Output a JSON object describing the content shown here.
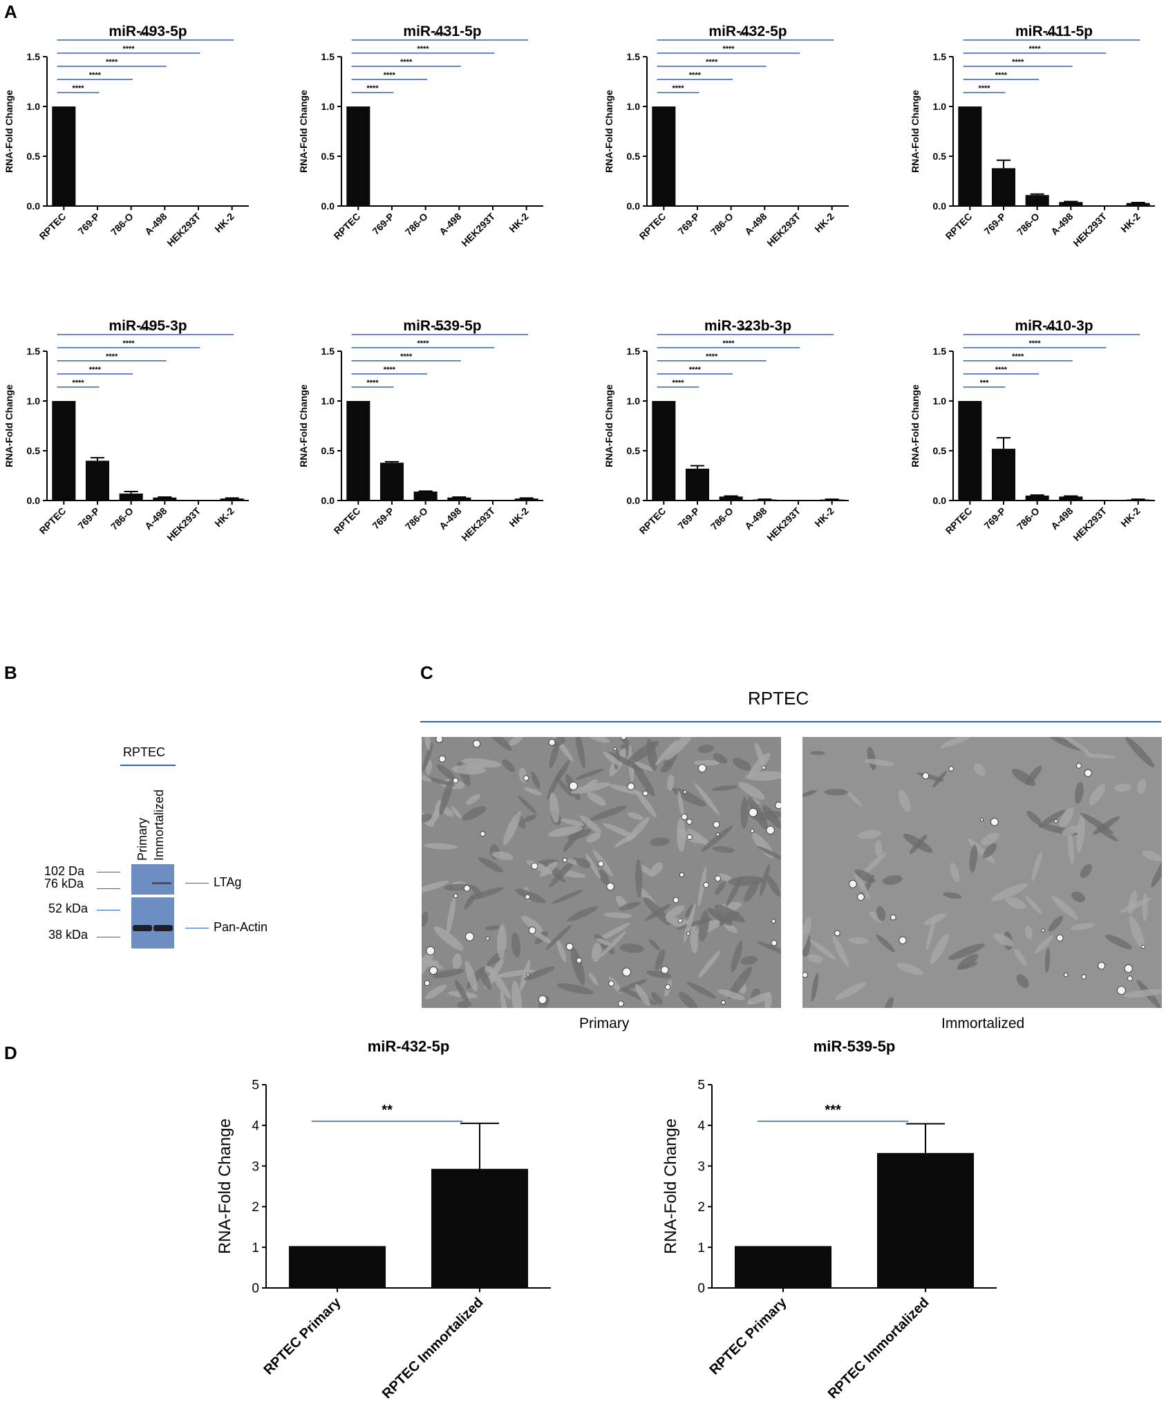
{
  "panels": {
    "a": "A",
    "b": "B",
    "c": "C",
    "d": "D"
  },
  "colors": {
    "bar": "#0a0a0a",
    "bracket": "#2f5fc4",
    "blot": "#6c8ec2",
    "cells": "#8a8a8a"
  },
  "chart_data": [
    {
      "type": "bar",
      "title": "miR-493-5p",
      "ylabel": "RNA-Fold Change",
      "categories": [
        "RPTEC",
        "769-P",
        "786-O",
        "A-498",
        "HEK293T",
        "HK-2"
      ],
      "values": [
        1.0,
        0,
        0,
        0,
        0,
        0
      ],
      "errors": [
        0,
        0,
        0,
        0,
        0,
        0
      ],
      "ylim": [
        0,
        1.5
      ],
      "yticks": [
        "0.0",
        "0.5",
        "1.0",
        "1.5"
      ],
      "significance": [
        "****",
        "****",
        "****",
        "****",
        "****"
      ]
    },
    {
      "type": "bar",
      "title": "miR-431-5p",
      "ylabel": "RNA-Fold Change",
      "categories": [
        "RPTEC",
        "769-P",
        "786-O",
        "A-498",
        "HEK293T",
        "HK-2"
      ],
      "values": [
        1.0,
        0,
        0,
        0,
        0,
        0
      ],
      "errors": [
        0,
        0,
        0,
        0,
        0,
        0
      ],
      "ylim": [
        0,
        1.5
      ],
      "yticks": [
        "0.0",
        "0.5",
        "1.0",
        "1.5"
      ],
      "significance": [
        "****",
        "****",
        "****",
        "****",
        "****"
      ]
    },
    {
      "type": "bar",
      "title": "miR-432-5p",
      "ylabel": "RNA-Fold Change",
      "categories": [
        "RPTEC",
        "769-P",
        "786-O",
        "A-498",
        "HEK293T",
        "HK-2"
      ],
      "values": [
        1.0,
        0,
        0,
        0,
        0,
        0
      ],
      "errors": [
        0,
        0,
        0,
        0,
        0,
        0
      ],
      "ylim": [
        0,
        1.5
      ],
      "yticks": [
        "0.0",
        "0.5",
        "1.0",
        "1.5"
      ],
      "significance": [
        "****",
        "****",
        "****",
        "****",
        "****"
      ]
    },
    {
      "type": "bar",
      "title": "miR-411-5p",
      "ylabel": "RNA-Fold Change",
      "categories": [
        "RPTEC",
        "769-P",
        "786-O",
        "A-498",
        "HEK293T",
        "HK-2"
      ],
      "values": [
        1.0,
        0.38,
        0.11,
        0.04,
        0.0,
        0.03
      ],
      "errors": [
        0,
        0.08,
        0.01,
        0.005,
        0,
        0.005
      ],
      "ylim": [
        0,
        1.5
      ],
      "yticks": [
        "0.0",
        "0.5",
        "1.0",
        "1.5"
      ],
      "significance": [
        "****",
        "****",
        "****",
        "****",
        "****"
      ]
    },
    {
      "type": "bar",
      "title": "miR-495-3p",
      "ylabel": "RNA-Fold Change",
      "categories": [
        "RPTEC",
        "769-P",
        "786-O",
        "A-498",
        "HEK293T",
        "HK-2"
      ],
      "values": [
        1.0,
        0.4,
        0.07,
        0.03,
        0.0,
        0.02
      ],
      "errors": [
        0,
        0.03,
        0.02,
        0.005,
        0,
        0.005
      ],
      "ylim": [
        0,
        1.5
      ],
      "yticks": [
        "0.0",
        "0.5",
        "1.0",
        "1.5"
      ],
      "significance": [
        "****",
        "****",
        "****",
        "****",
        "****"
      ]
    },
    {
      "type": "bar",
      "title": "miR-539-5p",
      "ylabel": "RNA-Fold Change",
      "categories": [
        "RPTEC",
        "769-P",
        "786-O",
        "A-498",
        "HEK293T",
        "HK-2"
      ],
      "values": [
        1.0,
        0.38,
        0.09,
        0.03,
        0.0,
        0.02
      ],
      "errors": [
        0,
        0.01,
        0.005,
        0.005,
        0,
        0.005
      ],
      "ylim": [
        0,
        1.5
      ],
      "yticks": [
        "0.0",
        "0.5",
        "1.0",
        "1.5"
      ],
      "significance": [
        "****",
        "****",
        "****",
        "****",
        "****"
      ]
    },
    {
      "type": "bar",
      "title": "miR-323b-3p",
      "ylabel": "RNA-Fold Change",
      "categories": [
        "RPTEC",
        "769-P",
        "786-O",
        "A-498",
        "HEK293T",
        "HK-2"
      ],
      "values": [
        1.0,
        0.32,
        0.04,
        0.01,
        0.005,
        0.01
      ],
      "errors": [
        0,
        0.03,
        0.005,
        0.003,
        0,
        0.003
      ],
      "ylim": [
        0,
        1.5
      ],
      "yticks": [
        "0.0",
        "0.5",
        "1.0",
        "1.5"
      ],
      "significance": [
        "****",
        "****",
        "****",
        "****",
        "****"
      ]
    },
    {
      "type": "bar",
      "title": "miR-410-3p",
      "ylabel": "RNA-Fold Change",
      "categories": [
        "RPTEC",
        "769-P",
        "786-O",
        "A-498",
        "HEK293T",
        "HK-2"
      ],
      "values": [
        1.0,
        0.52,
        0.05,
        0.04,
        0.003,
        0.01
      ],
      "errors": [
        0,
        0.11,
        0.005,
        0.005,
        0,
        0.003
      ],
      "ylim": [
        0,
        1.5
      ],
      "yticks": [
        "0.0",
        "0.5",
        "1.0",
        "1.5"
      ],
      "significance": [
        "***",
        "****",
        "****",
        "****",
        "****"
      ]
    },
    {
      "type": "bar",
      "title": "miR-432-5p",
      "ylabel": "RNA-Fold Change",
      "categories": [
        "RPTEC Primary",
        "RPTEC Immortalized"
      ],
      "values": [
        1.03,
        2.93
      ],
      "errors": [
        0,
        1.12
      ],
      "ylim": [
        0,
        5
      ],
      "yticks": [
        "0",
        "1",
        "2",
        "3",
        "4",
        "5"
      ],
      "significance": [
        "**"
      ]
    },
    {
      "type": "bar",
      "title": "miR-539-5p",
      "ylabel": "RNA-Fold Change",
      "categories": [
        "RPTEC Primary",
        "RPTEC Immortalized"
      ],
      "values": [
        1.03,
        3.32
      ],
      "errors": [
        0,
        0.72
      ],
      "ylim": [
        0,
        5
      ],
      "yticks": [
        "0",
        "1",
        "2",
        "3",
        "4",
        "5"
      ],
      "significance": [
        "***"
      ]
    }
  ],
  "blot": {
    "group_label": "RPTEC",
    "lanes": [
      "Primary",
      "Immortalized"
    ],
    "markers": [
      "102 Da",
      "76 kDa",
      "52 kDa",
      "38 kDa"
    ],
    "bands": [
      "LTAg",
      "Pan-Actin"
    ]
  },
  "micrographs": {
    "group_label": "RPTEC",
    "captions": [
      "Primary",
      "Immortalized"
    ]
  }
}
